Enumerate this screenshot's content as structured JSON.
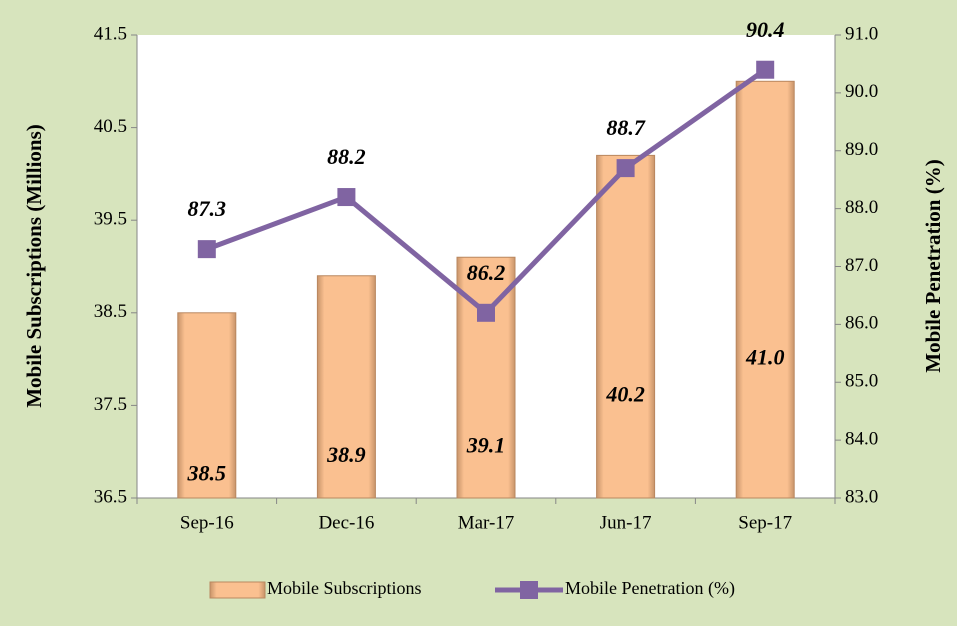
{
  "chart_data": {
    "type": "bar+line",
    "categories": [
      "Sep-16",
      "Dec-16",
      "Mar-17",
      "Jun-17",
      "Sep-17"
    ],
    "series": [
      {
        "name": "Mobile Subscriptions",
        "type": "bar",
        "color": "#fac090",
        "values": [
          38.5,
          38.9,
          39.1,
          40.2,
          41.0
        ],
        "value_labels": [
          "38.5",
          "38.9",
          "39.1",
          "40.2",
          "41.0"
        ]
      },
      {
        "name": "Mobile Penetration (%)",
        "type": "line",
        "axis": "y2",
        "color": "#8064a2",
        "values": [
          87.3,
          88.2,
          86.2,
          88.7,
          90.4
        ]
      }
    ],
    "ylabel": "Mobile Subscriptions (Millions)",
    "y2label": "Mobile Penetration (%)",
    "ylim": [
      36.5,
      41.5
    ],
    "yticks": [
      36.5,
      37.5,
      38.5,
      39.5,
      40.5,
      41.5
    ],
    "y2lim": [
      83,
      91
    ],
    "y2ticks": [
      {
        "value": 83,
        "label": "83.0"
      },
      {
        "value": 84,
        "label": "84.0"
      },
      {
        "value": 85,
        "label": "85.0"
      },
      {
        "value": 86,
        "label": "86.0"
      },
      {
        "value": 87,
        "label": "87.0"
      },
      {
        "value": 88,
        "label": "88.0"
      },
      {
        "value": 89,
        "label": "89.0"
      },
      {
        "value": 90,
        "label": "90.0"
      },
      {
        "value": 91,
        "label": "91.0"
      }
    ],
    "grid": false,
    "legend": "bottom"
  }
}
